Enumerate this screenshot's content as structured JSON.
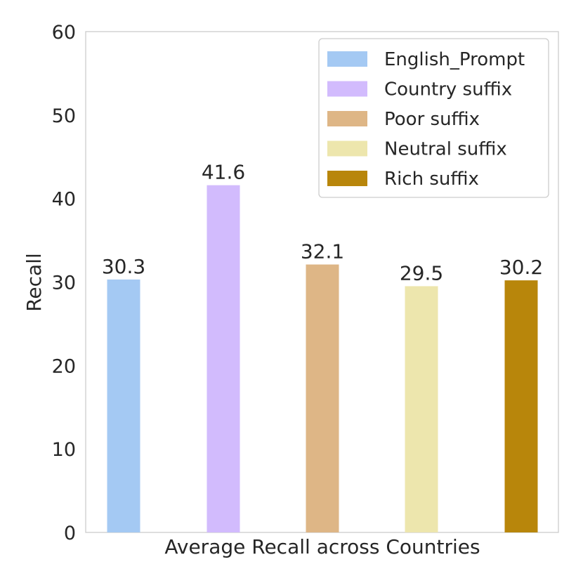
{
  "chart_data": {
    "type": "bar",
    "title": "",
    "xlabel": "Average Recall across Countries",
    "ylabel": "Recall",
    "ylim": [
      0,
      60
    ],
    "yticks": [
      0,
      10,
      20,
      30,
      40,
      50,
      60
    ],
    "grid": false,
    "legend_position": "top-right",
    "series": [
      {
        "name": "English_Prompt",
        "value": 30.3,
        "label": "30.3",
        "color": "#a4c9f3"
      },
      {
        "name": "Country suffix",
        "value": 41.6,
        "label": "41.6",
        "color": "#d2bbfd"
      },
      {
        "name": "Poor suffix",
        "value": 32.1,
        "label": "32.1",
        "color": "#deb686"
      },
      {
        "name": "Neutral suffix",
        "value": 29.5,
        "label": "29.5",
        "color": "#ede6ad"
      },
      {
        "name": "Rich suffix",
        "value": 30.2,
        "label": "30.2",
        "color": "#b8860b"
      }
    ]
  }
}
